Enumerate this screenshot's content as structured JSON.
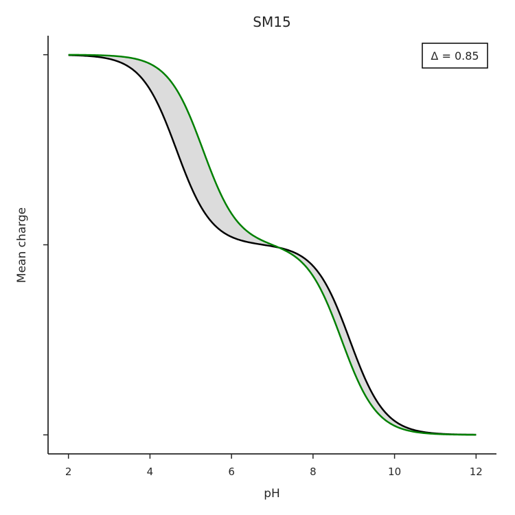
{
  "chart_data": {
    "type": "line",
    "title": "SM15",
    "xlabel": "pH",
    "ylabel": "Mean charge",
    "xlim": [
      1.5,
      12.5
    ],
    "ylim": [
      -0.1,
      2.1
    ],
    "x_ticks": [
      2,
      4,
      6,
      8,
      10,
      12
    ],
    "x_tick_labels": [
      "2",
      "4",
      "6",
      "8",
      "10",
      "12"
    ],
    "y_ticks": [
      0,
      1,
      2
    ],
    "y_tick_labels": [
      "",
      "",
      ""
    ],
    "annotation": "Δ = 0.85",
    "fill_between": {
      "color": "#dcdcdc"
    },
    "series": [
      {
        "color": "#000000",
        "pka": [
          4.65,
          8.9
        ]
      },
      {
        "color": "#008000",
        "pka": [
          5.3,
          8.7
        ]
      }
    ],
    "legend": "top-right",
    "grid": false
  }
}
